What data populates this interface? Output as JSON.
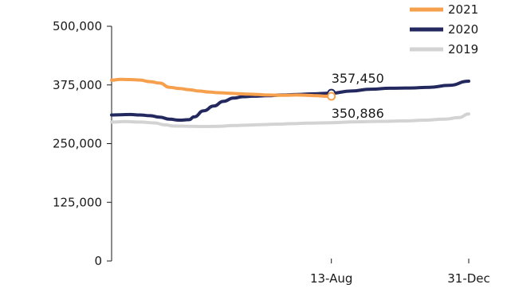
{
  "chart_data": {
    "type": "line",
    "title": "",
    "xlabel": "",
    "ylabel": "",
    "ylim": [
      0,
      500000
    ],
    "y_ticks": [
      {
        "value": 0,
        "label": "0"
      },
      {
        "value": 125000,
        "label": "125,000"
      },
      {
        "value": 250000,
        "label": "250,000"
      },
      {
        "value": 375000,
        "label": "375,000"
      },
      {
        "value": 500000,
        "label": "500,000"
      }
    ],
    "x_domain": [
      1,
      365
    ],
    "x_ticks": [
      {
        "day": 225,
        "label": "13-Aug"
      },
      {
        "day": 365,
        "label": "31-Dec"
      }
    ],
    "legend_position": "top-right",
    "grid": false,
    "series": [
      {
        "name": "2021",
        "color": "#f6a04d",
        "points": [
          [
            1,
            385000
          ],
          [
            10,
            387000
          ],
          [
            20,
            386500
          ],
          [
            30,
            385500
          ],
          [
            40,
            382000
          ],
          [
            50,
            379000
          ],
          [
            60,
            370000
          ],
          [
            70,
            367500
          ],
          [
            80,
            365000
          ],
          [
            90,
            362000
          ],
          [
            100,
            360000
          ],
          [
            110,
            358500
          ],
          [
            120,
            357500
          ],
          [
            130,
            356500
          ],
          [
            140,
            355500
          ],
          [
            150,
            354500
          ],
          [
            160,
            353500
          ],
          [
            170,
            353000
          ],
          [
            180,
            353000
          ],
          [
            190,
            353500
          ],
          [
            200,
            353000
          ],
          [
            210,
            352000
          ],
          [
            220,
            351000
          ],
          [
            225,
            350886
          ]
        ]
      },
      {
        "name": "2020",
        "color": "#23285e",
        "points": [
          [
            1,
            311000
          ],
          [
            10,
            311500
          ],
          [
            20,
            312000
          ],
          [
            30,
            311000
          ],
          [
            40,
            309500
          ],
          [
            50,
            306500
          ],
          [
            60,
            302000
          ],
          [
            70,
            300000
          ],
          [
            80,
            301000
          ],
          [
            85,
            307000
          ],
          [
            95,
            320000
          ],
          [
            105,
            330000
          ],
          [
            115,
            340000
          ],
          [
            125,
            347000
          ],
          [
            135,
            350000
          ],
          [
            145,
            351000
          ],
          [
            160,
            352000
          ],
          [
            175,
            353500
          ],
          [
            190,
            354500
          ],
          [
            205,
            356000
          ],
          [
            225,
            357450
          ],
          [
            245,
            362000
          ],
          [
            265,
            366000
          ],
          [
            285,
            368000
          ],
          [
            305,
            368500
          ],
          [
            325,
            370000
          ],
          [
            345,
            374000
          ],
          [
            365,
            383000
          ]
        ]
      },
      {
        "name": "2019",
        "color": "#d3d3d3",
        "points": [
          [
            1,
            296000
          ],
          [
            15,
            297000
          ],
          [
            30,
            296000
          ],
          [
            45,
            294000
          ],
          [
            55,
            290000
          ],
          [
            65,
            287500
          ],
          [
            80,
            287000
          ],
          [
            95,
            286500
          ],
          [
            110,
            287000
          ],
          [
            125,
            288500
          ],
          [
            140,
            289500
          ],
          [
            155,
            290500
          ],
          [
            170,
            291500
          ],
          [
            185,
            292500
          ],
          [
            200,
            293500
          ],
          [
            225,
            294500
          ],
          [
            250,
            296500
          ],
          [
            275,
            297500
          ],
          [
            300,
            298500
          ],
          [
            320,
            300000
          ],
          [
            340,
            302000
          ],
          [
            355,
            305500
          ],
          [
            365,
            313000
          ]
        ]
      }
    ],
    "annotations": [
      {
        "label": "357,450",
        "day": 225,
        "value": 357450,
        "series": "2020"
      },
      {
        "label": "350,886",
        "day": 225,
        "value": 350886,
        "series": "2021"
      }
    ]
  }
}
